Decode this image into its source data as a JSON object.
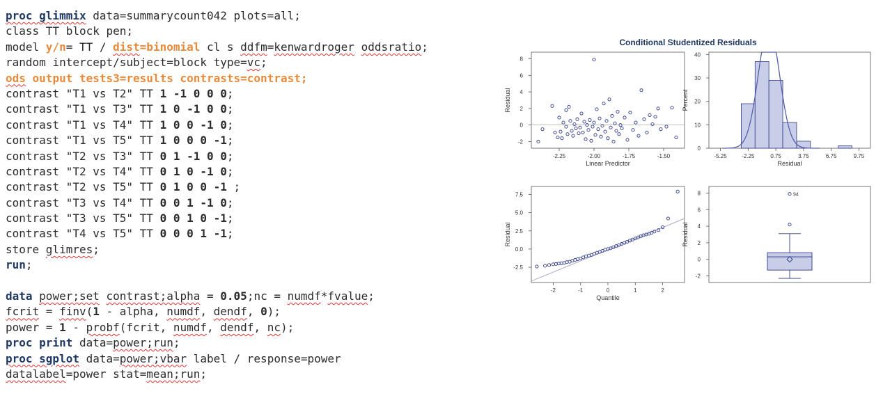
{
  "code": [
    [
      {
        "t": "proc glimmix",
        "c": "k sq"
      },
      {
        "t": " data=summarycount042 plots=all;"
      }
    ],
    [
      {
        "t": "class TT block pen;"
      }
    ],
    [
      {
        "t": "model "
      },
      {
        "t": "y/n",
        "c": "o"
      },
      {
        "t": "= TT / "
      },
      {
        "t": "dist",
        "c": "o sq"
      },
      {
        "t": "=binomial",
        "c": "o"
      },
      {
        "t": " cl s "
      },
      {
        "t": "ddfm",
        "c": "sq"
      },
      {
        "t": "="
      },
      {
        "t": "kenwardroger",
        "c": "sq"
      },
      {
        "t": " "
      },
      {
        "t": "oddsratio",
        "c": "sq"
      },
      {
        "t": ";"
      }
    ],
    [
      {
        "t": "random intercept/subject=block type="
      },
      {
        "t": "vc",
        "c": "sq"
      },
      {
        "t": ";"
      }
    ],
    [
      {
        "t": "ods",
        "c": "o sq"
      },
      {
        "t": " output tests3=results contrasts=contrast;",
        "c": "o"
      }
    ],
    [
      {
        "t": "contrast \"T1 vs T2\" TT "
      },
      {
        "t": "1 -1 0 0 0",
        "c": "n"
      },
      {
        "t": ";"
      }
    ],
    [
      {
        "t": "contrast \"T1 vs T3\" TT "
      },
      {
        "t": "1 0 -1 0 0",
        "c": "n"
      },
      {
        "t": ";"
      }
    ],
    [
      {
        "t": "contrast \"T1 vs T4\" TT "
      },
      {
        "t": "1 0 0 -1 0",
        "c": "n"
      },
      {
        "t": ";"
      }
    ],
    [
      {
        "t": "contrast \"T1 vs T5\" TT "
      },
      {
        "t": "1 0 0 0 -1",
        "c": "n"
      },
      {
        "t": ";"
      }
    ],
    [
      {
        "t": "contrast \"T2 vs T3\" TT "
      },
      {
        "t": "0 1 -1 0 0",
        "c": "n"
      },
      {
        "t": ";"
      }
    ],
    [
      {
        "t": "contrast \"T2 vs T4\" TT "
      },
      {
        "t": "0 1 0 -1 0",
        "c": "n"
      },
      {
        "t": ";"
      }
    ],
    [
      {
        "t": "contrast \"T2 vs T5\" TT "
      },
      {
        "t": "0 1 0 0 -1",
        "c": "n"
      },
      {
        "t": " ;"
      }
    ],
    [
      {
        "t": "contrast \"T3 vs T4\" TT "
      },
      {
        "t": "0 0 1 -1 0",
        "c": "n"
      },
      {
        "t": ";"
      }
    ],
    [
      {
        "t": "contrast \"T3 vs T5\" TT "
      },
      {
        "t": "0 0 1 0 -1",
        "c": "n"
      },
      {
        "t": ";"
      }
    ],
    [
      {
        "t": "contrast \"T4 vs T5\" TT "
      },
      {
        "t": "0 0 0 1 -1",
        "c": "n"
      },
      {
        "t": ";"
      }
    ],
    [
      {
        "t": "store "
      },
      {
        "t": "glimres",
        "c": "sq"
      },
      {
        "t": ";"
      }
    ],
    [
      {
        "t": "run",
        "c": "k"
      },
      {
        "t": ";"
      }
    ],
    [],
    [
      {
        "t": "data",
        "c": "k"
      },
      {
        "t": " "
      },
      {
        "t": "power;set",
        "c": "sq"
      },
      {
        "t": " "
      },
      {
        "t": "contrast;alpha",
        "c": "sq"
      },
      {
        "t": " = "
      },
      {
        "t": "0.05",
        "c": "n"
      },
      {
        "t": ";nc = "
      },
      {
        "t": "numdf",
        "c": "sq"
      },
      {
        "t": "*"
      },
      {
        "t": "fvalue",
        "c": "sq"
      },
      {
        "t": ";"
      }
    ],
    [
      {
        "t": "fcrit",
        "c": "sq"
      },
      {
        "t": " = "
      },
      {
        "t": "finv",
        "c": "sq"
      },
      {
        "t": "("
      },
      {
        "t": "1",
        "c": "n"
      },
      {
        "t": " - alpha, "
      },
      {
        "t": "numdf",
        "c": "sq"
      },
      {
        "t": ", "
      },
      {
        "t": "dendf",
        "c": "sq"
      },
      {
        "t": ", "
      },
      {
        "t": "0",
        "c": "n"
      },
      {
        "t": ");"
      }
    ],
    [
      {
        "t": "power = "
      },
      {
        "t": "1",
        "c": "n"
      },
      {
        "t": " - "
      },
      {
        "t": "probf",
        "c": "sq"
      },
      {
        "t": "(fcrit, "
      },
      {
        "t": "numdf",
        "c": "sq"
      },
      {
        "t": ", "
      },
      {
        "t": "dendf",
        "c": "sq"
      },
      {
        "t": ", "
      },
      {
        "t": "nc",
        "c": "sq"
      },
      {
        "t": ");"
      }
    ],
    [
      {
        "t": "proc print",
        "c": "k"
      },
      {
        "t": " data="
      },
      {
        "t": "power;run",
        "c": "sq"
      },
      {
        "t": ";"
      }
    ],
    [
      {
        "t": "proc sgplot",
        "c": "k sq"
      },
      {
        "t": " data="
      },
      {
        "t": "power;vbar",
        "c": "sq"
      },
      {
        "t": " label / response=power"
      }
    ],
    [
      {
        "t": "datalabel",
        "c": "sq"
      },
      {
        "t": "=power stat="
      },
      {
        "t": "mean;run",
        "c": "sq"
      },
      {
        "t": ";"
      }
    ]
  ],
  "panel_title": "Conditional Studentized Residuals",
  "colors": {
    "marker": "#2e3a87",
    "axis": "#555555",
    "fill": "#c8cde8",
    "curve": "#5560a8"
  },
  "chart_data": [
    {
      "type": "scatter",
      "xlabel": "Linear Predictor",
      "ylabel": "Residual",
      "xlim": [
        -2.45,
        -1.35
      ],
      "ylim": [
        -2.8,
        8.8
      ],
      "xticks": [
        -2.25,
        -2.0,
        -1.75,
        -1.5
      ],
      "xtick_labels": [
        "-2.25",
        "-2.00",
        "-1.75",
        "-1.50"
      ],
      "yticks": [
        -2,
        0,
        2,
        4,
        6,
        8
      ],
      "ytick_labels": [
        "-2",
        "0",
        "2",
        "4",
        "6",
        "8"
      ],
      "reference_line_y": 0,
      "points": [
        [
          -2.4,
          -2.0
        ],
        [
          -2.37,
          -0.5
        ],
        [
          -2.3,
          2.3
        ],
        [
          -2.28,
          -0.9
        ],
        [
          -2.26,
          -1.5
        ],
        [
          -2.25,
          0.9
        ],
        [
          -2.24,
          -0.8
        ],
        [
          -2.23,
          -1.6
        ],
        [
          -2.22,
          0.3
        ],
        [
          -2.2,
          -0.2
        ],
        [
          -2.2,
          1.8
        ],
        [
          -2.19,
          -1.1
        ],
        [
          -2.18,
          2.2
        ],
        [
          -2.17,
          0.5
        ],
        [
          -2.16,
          -0.7
        ],
        [
          -2.15,
          -1.3
        ],
        [
          -2.14,
          0.1
        ],
        [
          -2.13,
          -0.4
        ],
        [
          -2.12,
          0.7
        ],
        [
          -2.11,
          -1.0
        ],
        [
          -2.1,
          -0.3
        ],
        [
          -2.09,
          1.4
        ],
        [
          -2.08,
          -0.9
        ],
        [
          -2.07,
          0.4
        ],
        [
          -2.06,
          -1.7
        ],
        [
          -2.05,
          0.0
        ],
        [
          -2.04,
          -0.6
        ],
        [
          -2.03,
          0.6
        ],
        [
          -2.02,
          -1.9
        ],
        [
          -2.01,
          -0.2
        ],
        [
          -2.0,
          0.3
        ],
        [
          -2.0,
          7.9
        ],
        [
          -1.99,
          -1.2
        ],
        [
          -1.98,
          1.9
        ],
        [
          -1.97,
          -0.5
        ],
        [
          -1.96,
          0.8
        ],
        [
          -1.95,
          -1.4
        ],
        [
          -1.94,
          -0.1
        ],
        [
          -1.93,
          2.6
        ],
        [
          -1.92,
          -0.8
        ],
        [
          -1.91,
          0.5
        ],
        [
          -1.9,
          -1.6
        ],
        [
          -1.89,
          3.1
        ],
        [
          -1.88,
          -0.3
        ],
        [
          -1.87,
          1.1
        ],
        [
          -1.86,
          -2.0
        ],
        [
          -1.85,
          0.2
        ],
        [
          -1.84,
          -0.7
        ],
        [
          -1.83,
          1.6
        ],
        [
          -1.82,
          -1.1
        ],
        [
          -1.81,
          0.0
        ],
        [
          -1.8,
          -0.4
        ],
        [
          -1.78,
          0.9
        ],
        [
          -1.76,
          -1.8
        ],
        [
          -1.74,
          1.5
        ],
        [
          -1.72,
          -0.6
        ],
        [
          -1.7,
          0.3
        ],
        [
          -1.68,
          -1.3
        ],
        [
          -1.66,
          4.2
        ],
        [
          -1.64,
          0.7
        ],
        [
          -1.62,
          -0.9
        ],
        [
          -1.6,
          1.2
        ],
        [
          -1.58,
          0.1
        ],
        [
          -1.56,
          1.0
        ],
        [
          -1.54,
          2.0
        ],
        [
          -1.52,
          -0.5
        ],
        [
          -1.48,
          -0.2
        ],
        [
          -1.44,
          2.1
        ],
        [
          -1.41,
          -1.5
        ]
      ]
    },
    {
      "type": "bar",
      "xlabel": "Residual",
      "ylabel": "Percent",
      "xlim": [
        -6.5,
        11.0
      ],
      "ylim": [
        0,
        41
      ],
      "xticks": [
        -5.25,
        -2.25,
        0.75,
        3.75,
        6.75,
        9.75
      ],
      "xtick_labels": [
        "-5.25",
        "-2.25",
        "0.75",
        "3.75",
        "6.75",
        "9.75"
      ],
      "yticks": [
        0,
        10,
        20,
        30,
        40
      ],
      "ytick_labels": [
        "0",
        "10",
        "20",
        "30",
        "40"
      ],
      "bin_width": 1.5,
      "bins": [
        {
          "start": -3.0,
          "value": 19
        },
        {
          "start": -1.5,
          "value": 37
        },
        {
          "start": 0.0,
          "value": 29
        },
        {
          "start": 1.5,
          "value": 11
        },
        {
          "start": 3.0,
          "value": 3
        },
        {
          "start": 4.5,
          "value": 0
        },
        {
          "start": 6.0,
          "value": 0
        },
        {
          "start": 7.5,
          "value": 1
        }
      ],
      "curve": {
        "mean": 0.0,
        "sd": 1.15
      }
    },
    {
      "type": "scatter",
      "xlabel": "Quantile",
      "ylabel": "Residual",
      "xlim": [
        -2.8,
        2.8
      ],
      "ylim": [
        -4.6,
        8.6
      ],
      "xticks": [
        -2,
        -1,
        0,
        1,
        2
      ],
      "xtick_labels": [
        "-2",
        "-1",
        "0",
        "1",
        "2"
      ],
      "yticks": [
        -2.5,
        0.0,
        2.5,
        5.0,
        7.5
      ],
      "ytick_labels": [
        "-2.5",
        "0.0",
        "2.5",
        "5.0",
        "7.5"
      ],
      "reference_line": [
        [
          -2.8,
          -4.4
        ],
        [
          2.8,
          4.2
        ]
      ],
      "points": [
        [
          -2.6,
          -2.4
        ],
        [
          -2.3,
          -2.3
        ],
        [
          -2.15,
          -2.2
        ],
        [
          -2.0,
          -2.1
        ],
        [
          -1.9,
          -2.05
        ],
        [
          -1.8,
          -2.0
        ],
        [
          -1.7,
          -1.95
        ],
        [
          -1.6,
          -1.9
        ],
        [
          -1.5,
          -1.8
        ],
        [
          -1.4,
          -1.75
        ],
        [
          -1.3,
          -1.6
        ],
        [
          -1.2,
          -1.5
        ],
        [
          -1.1,
          -1.4
        ],
        [
          -1.0,
          -1.3
        ],
        [
          -0.9,
          -1.15
        ],
        [
          -0.8,
          -1.0
        ],
        [
          -0.7,
          -0.9
        ],
        [
          -0.6,
          -0.8
        ],
        [
          -0.5,
          -0.65
        ],
        [
          -0.4,
          -0.5
        ],
        [
          -0.3,
          -0.4
        ],
        [
          -0.2,
          -0.25
        ],
        [
          -0.1,
          -0.1
        ],
        [
          0.0,
          0.0
        ],
        [
          0.1,
          0.1
        ],
        [
          0.2,
          0.25
        ],
        [
          0.3,
          0.4
        ],
        [
          0.4,
          0.55
        ],
        [
          0.5,
          0.7
        ],
        [
          0.6,
          0.85
        ],
        [
          0.7,
          1.0
        ],
        [
          0.8,
          1.15
        ],
        [
          0.9,
          1.3
        ],
        [
          1.0,
          1.45
        ],
        [
          1.1,
          1.6
        ],
        [
          1.2,
          1.75
        ],
        [
          1.3,
          1.9
        ],
        [
          1.4,
          2.0
        ],
        [
          1.5,
          2.1
        ],
        [
          1.6,
          2.25
        ],
        [
          1.7,
          2.4
        ],
        [
          1.85,
          2.6
        ],
        [
          2.0,
          3.0
        ],
        [
          2.2,
          4.2
        ],
        [
          2.55,
          7.9
        ]
      ]
    },
    {
      "type": "box",
      "ylabel": "Residual",
      "ylim": [
        -2.8,
        8.8
      ],
      "yticks": [
        -2,
        0,
        2,
        4,
        6,
        8
      ],
      "ytick_labels": [
        "-2",
        "0",
        "2",
        "4",
        "6",
        "8"
      ],
      "whisker_low": -2.3,
      "q1": -1.3,
      "median": 0.3,
      "q3": 0.8,
      "whisker_high": 3.1,
      "mean": 0.0,
      "outliers": [
        {
          "y": 4.2,
          "label": ""
        },
        {
          "y": 7.9,
          "label": "94"
        }
      ]
    }
  ]
}
